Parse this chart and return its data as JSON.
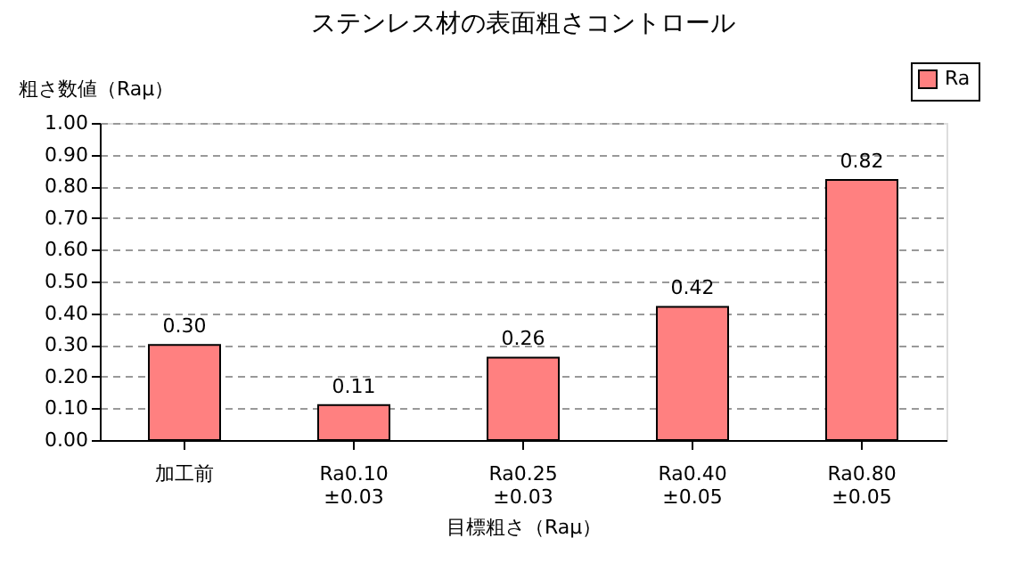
{
  "chart_data": {
    "type": "bar",
    "title": "ステンレス材の表面粗さコントロール",
    "ylabel": "粗さ数値（Raμ）",
    "xlabel": "目標粗さ（Raμ）",
    "categories": [
      "加工前",
      "Ra0.10\n±0.03",
      "Ra0.25\n±0.03",
      "Ra0.40\n±0.05",
      "Ra0.80\n±0.05"
    ],
    "series": [
      {
        "name": "Ra",
        "color": "#ff8080",
        "values": [
          0.3,
          0.11,
          0.26,
          0.42,
          0.82
        ],
        "value_labels": [
          "0.30",
          "0.11",
          "0.26",
          "0.42",
          "0.82"
        ]
      }
    ],
    "ylim": [
      0,
      1.0
    ],
    "yticks": [
      {
        "value": 0,
        "label": "0.00"
      },
      {
        "value": 0.1,
        "label": "0.10"
      },
      {
        "value": 0.2,
        "label": "0.20"
      },
      {
        "value": 0.3,
        "label": "0.30"
      },
      {
        "value": 0.4,
        "label": "0.40"
      },
      {
        "value": 0.5,
        "label": "0.50"
      },
      {
        "value": 0.6,
        "label": "0.60"
      },
      {
        "value": 0.7,
        "label": "0.70"
      },
      {
        "value": 0.8,
        "label": "0.80"
      },
      {
        "value": 0.9,
        "label": "0.90"
      },
      {
        "value": 1.0,
        "label": "1.00"
      }
    ],
    "grid": "y",
    "legend": "top right"
  }
}
